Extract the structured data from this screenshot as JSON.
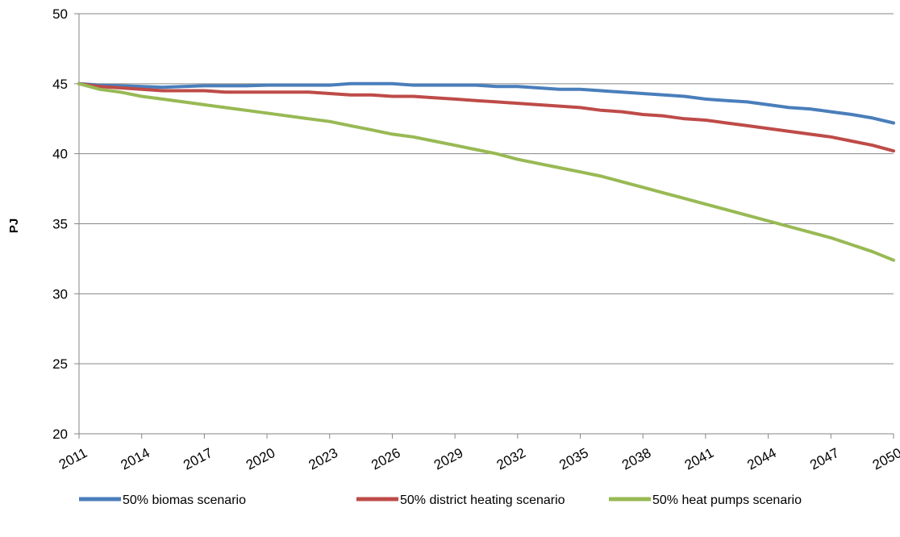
{
  "chart_data": {
    "type": "line",
    "title": "",
    "xlabel": "",
    "ylabel": "PJ",
    "ylim": [
      20,
      50
    ],
    "yticks": [
      "20",
      "25",
      "30",
      "35",
      "40",
      "45",
      "50"
    ],
    "x": [
      2011,
      2012,
      2013,
      2014,
      2015,
      2016,
      2017,
      2018,
      2019,
      2020,
      2021,
      2022,
      2023,
      2024,
      2025,
      2026,
      2027,
      2028,
      2029,
      2030,
      2031,
      2032,
      2033,
      2034,
      2035,
      2036,
      2037,
      2038,
      2039,
      2040,
      2041,
      2042,
      2043,
      2044,
      2045,
      2046,
      2047,
      2048,
      2049,
      2050
    ],
    "xtick_labels": [
      "2011",
      "2014",
      "2017",
      "2020",
      "2023",
      "2026",
      "2029",
      "2032",
      "2035",
      "2038",
      "2041",
      "2044",
      "2047",
      "2050"
    ],
    "grid": "horizontal",
    "legend_position": "bottom",
    "series": [
      {
        "name": "50% biomas scenario",
        "color": "#4a7ebb",
        "values": [
          45.0,
          44.9,
          44.85,
          44.8,
          44.75,
          44.8,
          44.85,
          44.85,
          44.85,
          44.9,
          44.9,
          44.9,
          44.9,
          45.0,
          45.0,
          45.0,
          44.9,
          44.9,
          44.9,
          44.9,
          44.8,
          44.8,
          44.7,
          44.6,
          44.6,
          44.5,
          44.4,
          44.3,
          44.2,
          44.1,
          43.9,
          43.8,
          43.7,
          43.5,
          43.3,
          43.2,
          43.0,
          42.8,
          42.55,
          42.2
        ]
      },
      {
        "name": "50% district heating scenario",
        "color": "#be4b48",
        "values": [
          45.0,
          44.8,
          44.7,
          44.6,
          44.5,
          44.5,
          44.5,
          44.4,
          44.4,
          44.4,
          44.4,
          44.4,
          44.3,
          44.2,
          44.2,
          44.1,
          44.1,
          44.0,
          43.9,
          43.8,
          43.7,
          43.6,
          43.5,
          43.4,
          43.3,
          43.1,
          43.0,
          42.8,
          42.7,
          42.5,
          42.4,
          42.2,
          42.0,
          41.8,
          41.6,
          41.4,
          41.2,
          40.9,
          40.6,
          40.2
        ]
      },
      {
        "name": "50% heat pumps scenario",
        "color": "#98b954",
        "values": [
          45.0,
          44.6,
          44.4,
          44.1,
          43.9,
          43.7,
          43.5,
          43.3,
          43.1,
          42.9,
          42.7,
          42.5,
          42.3,
          42.0,
          41.7,
          41.4,
          41.2,
          40.9,
          40.6,
          40.3,
          40.0,
          39.6,
          39.3,
          39.0,
          38.7,
          38.4,
          38.0,
          37.6,
          37.2,
          36.8,
          36.4,
          36.0,
          35.6,
          35.2,
          34.8,
          34.4,
          34.0,
          33.5,
          33.0,
          32.4
        ]
      }
    ]
  }
}
